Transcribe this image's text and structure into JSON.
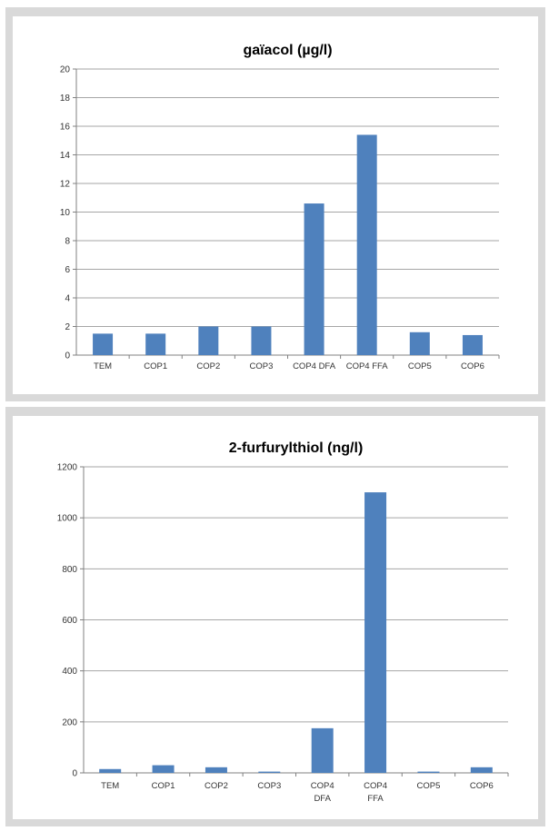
{
  "chart_data": [
    {
      "type": "bar",
      "title": "gaïacol (µg/l)",
      "categories": [
        [
          "TEM"
        ],
        [
          "COP1"
        ],
        [
          "COP2"
        ],
        [
          "COP3"
        ],
        [
          "COP4 DFA"
        ],
        [
          "COP4 FFA"
        ],
        [
          "COP5"
        ],
        [
          "COP6"
        ]
      ],
      "values": [
        1.5,
        1.5,
        2.0,
        2.0,
        10.6,
        15.4,
        1.6,
        1.4
      ],
      "ylim": [
        0,
        20
      ],
      "yticks": [
        "0",
        "2",
        "4",
        "6",
        "8",
        "10",
        "12",
        "14",
        "16",
        "18",
        "20"
      ],
      "grid": true,
      "bar_color": "#4f81bd"
    },
    {
      "type": "bar",
      "title": "2-furfurylthiol (ng/l)",
      "categories": [
        [
          "TEM"
        ],
        [
          "COP1"
        ],
        [
          "COP2"
        ],
        [
          "COP3"
        ],
        [
          "COP4",
          "DFA"
        ],
        [
          "COP4",
          "FFA"
        ],
        [
          "COP5"
        ],
        [
          "COP6"
        ]
      ],
      "values": [
        15,
        30,
        22,
        5,
        175,
        1100,
        5,
        22
      ],
      "ylim": [
        0,
        1200
      ],
      "yticks": [
        "0",
        "200",
        "400",
        "600",
        "800",
        "1000",
        "1200"
      ],
      "grid": true,
      "bar_color": "#4f81bd"
    }
  ]
}
